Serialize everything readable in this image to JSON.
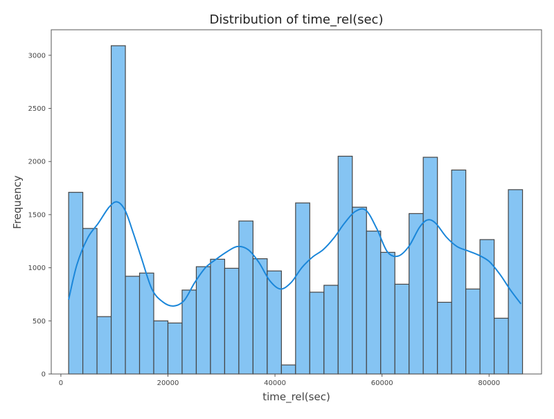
{
  "chart_data": {
    "type": "bar",
    "title": "Distribution of time_rel(sec)",
    "xlabel": "time_rel(sec)",
    "ylabel": "Frequency",
    "xlim": [
      -1800,
      89800
    ],
    "ylim": [
      0,
      3240
    ],
    "xticks": [
      0,
      20000,
      40000,
      60000,
      80000
    ],
    "xtick_labels": [
      "0",
      "20000",
      "40000",
      "60000",
      "80000"
    ],
    "yticks": [
      0,
      500,
      1000,
      1500,
      2000,
      2500,
      3000
    ],
    "ytick_labels": [
      "0",
      "500",
      "1000",
      "1500",
      "2000",
      "2500",
      "3000"
    ],
    "grid": false,
    "bin_start": 1450,
    "bin_width": 2650,
    "counts": [
      1710,
      1370,
      540,
      3090,
      920,
      950,
      500,
      480,
      790,
      1010,
      1080,
      995,
      1440,
      1085,
      970,
      85,
      1610,
      770,
      835,
      2050,
      1570,
      1345,
      1145,
      845,
      1510,
      2040,
      675,
      1920,
      800,
      1265,
      525,
      1735
    ],
    "kde": {
      "x": [
        1450,
        3000,
        5000,
        7000,
        9000,
        10500,
        12000,
        13500,
        15000,
        17000,
        19000,
        21000,
        23000,
        25000,
        27000,
        29000,
        31000,
        33000,
        35000,
        37000,
        39000,
        41000,
        43000,
        45000,
        47000,
        49000,
        51000,
        53000,
        55000,
        57000,
        59000,
        61000,
        63000,
        65000,
        67000,
        68500,
        70000,
        72000,
        74000,
        76000,
        78000,
        80000,
        82000,
        84000,
        85950
      ],
      "y": [
        700,
        1030,
        1280,
        1420,
        1570,
        1620,
        1540,
        1330,
        1100,
        800,
        680,
        640,
        690,
        860,
        1000,
        1080,
        1150,
        1200,
        1170,
        1050,
        880,
        800,
        860,
        1000,
        1100,
        1170,
        1280,
        1420,
        1530,
        1540,
        1370,
        1150,
        1110,
        1200,
        1380,
        1450,
        1420,
        1290,
        1200,
        1160,
        1120,
        1060,
        940,
        790,
        660
      ]
    },
    "colors": {
      "bar_fill": "#85c4f3",
      "bar_edge": "#444444",
      "kde_line": "#1a86d9",
      "frame": "#555555"
    }
  }
}
